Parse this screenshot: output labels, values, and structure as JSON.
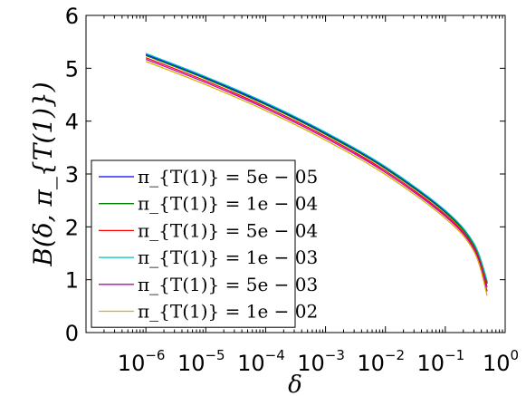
{
  "chart_data": {
    "type": "line",
    "xscale": "log",
    "xlabel": "δ",
    "ylabel": "B(δ, π_{T(1)})",
    "xlim": [
      1e-07,
      1
    ],
    "ylim": [
      0,
      6
    ],
    "yticks": [
      0,
      1,
      2,
      3,
      4,
      5,
      6
    ],
    "xticks": [
      {
        "base": "10",
        "exp": "−6"
      },
      {
        "base": "10",
        "exp": "−5"
      },
      {
        "base": "10",
        "exp": "−4"
      },
      {
        "base": "10",
        "exp": "−3"
      },
      {
        "base": "10",
        "exp": "−2"
      },
      {
        "base": "10",
        "exp": "−1"
      },
      {
        "base": "10",
        "exp": "0"
      }
    ],
    "grid": false,
    "legend_position": "bottom-left",
    "x": [
      1e-06,
      1e-05,
      0.0001,
      0.001,
      0.01,
      0.1,
      0.3,
      0.5
    ],
    "series": [
      {
        "name": "π_{T(1)} = 5e − 05",
        "color": "#0000ff",
        "values": [
          5.26,
          4.82,
          4.33,
          3.77,
          3.12,
          2.29,
          1.67,
          0.95
        ]
      },
      {
        "name": "π_{T(1)} = 1e − 04",
        "color": "#008000",
        "values": [
          5.24,
          4.8,
          4.31,
          3.75,
          3.1,
          2.27,
          1.65,
          0.92
        ]
      },
      {
        "name": "π_{T(1)} = 5e − 04",
        "color": "#ff0000",
        "values": [
          5.2,
          4.76,
          4.27,
          3.71,
          3.06,
          2.23,
          1.61,
          0.86
        ]
      },
      {
        "name": "π_{T(1)} = 1e − 03",
        "color": "#00bfbf",
        "values": [
          5.28,
          4.84,
          4.35,
          3.79,
          3.14,
          2.31,
          1.69,
          0.98
        ]
      },
      {
        "name": "π_{T(1)} = 5e − 03",
        "color": "#bf00bf",
        "values": [
          5.17,
          4.73,
          4.24,
          3.68,
          3.03,
          2.2,
          1.58,
          0.78
        ]
      },
      {
        "name": "π_{T(1)} = 1e − 02",
        "color": "#d9b300",
        "values": [
          5.13,
          4.69,
          4.2,
          3.64,
          2.99,
          2.16,
          1.54,
          0.7
        ]
      }
    ]
  }
}
